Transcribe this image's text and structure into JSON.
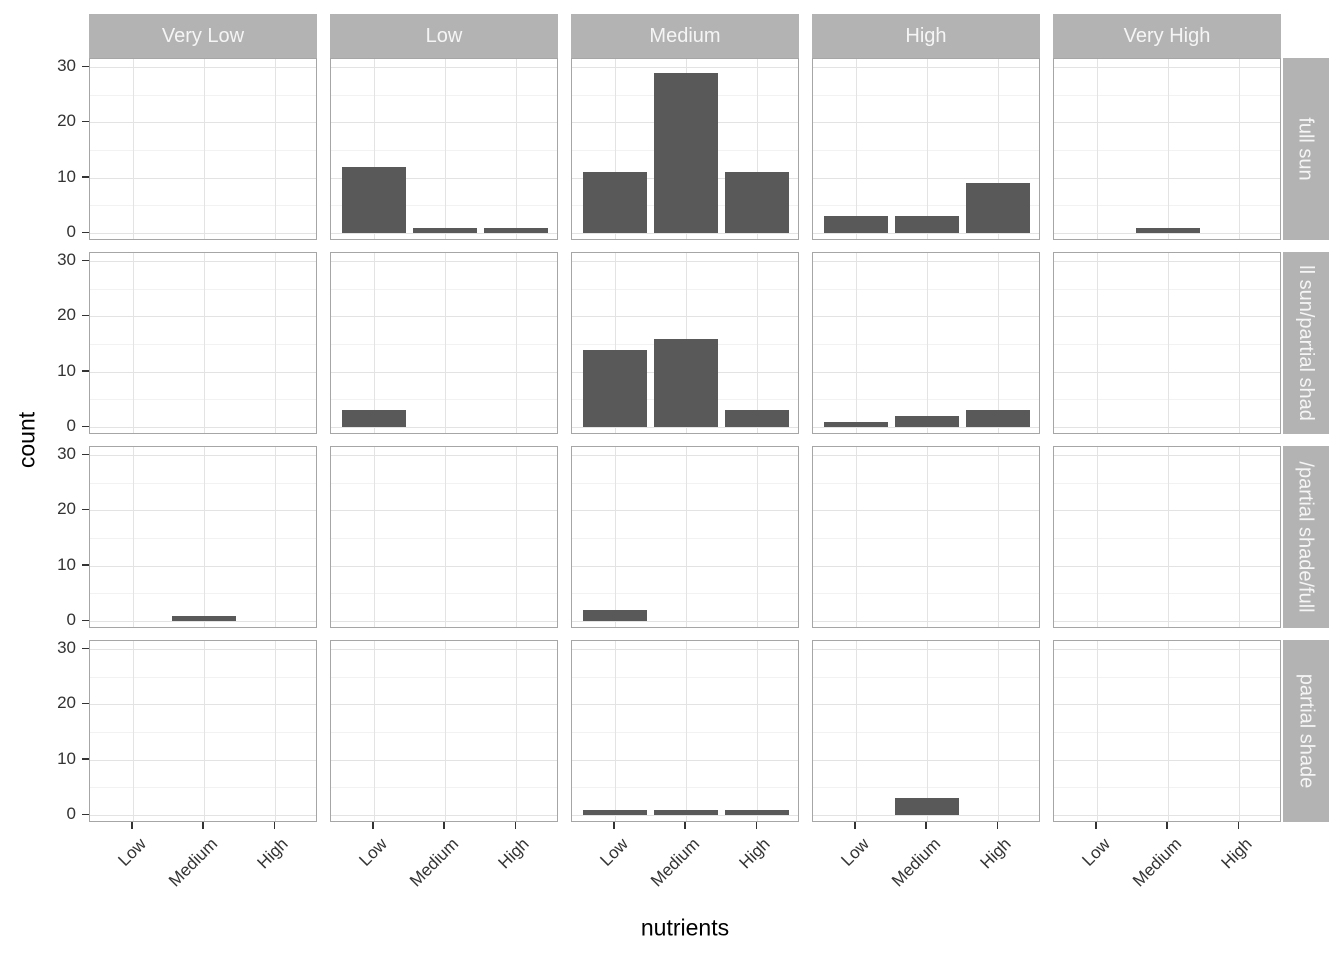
{
  "chart_data": {
    "type": "bar",
    "title": "",
    "xlabel": "nutrients",
    "ylabel": "count",
    "x_categories": [
      "Low",
      "Medium",
      "High"
    ],
    "facet_columns": [
      "Very Low",
      "Low",
      "Medium",
      "High",
      "Very High"
    ],
    "facet_rows": [
      "full sun",
      "ll sun/partial shad",
      "/partial shade/full",
      "partial shade"
    ],
    "y_ticks": [
      0,
      10,
      20,
      30
    ],
    "ylim": [
      0,
      30
    ],
    "grid": "major and minor, light grey on white panels",
    "legend": "none",
    "counts": [
      [
        [
          0,
          0,
          0
        ],
        [
          12,
          1,
          1
        ],
        [
          11,
          29,
          11
        ],
        [
          3,
          3,
          9
        ],
        [
          0,
          1,
          0
        ]
      ],
      [
        [
          0,
          0,
          0
        ],
        [
          3,
          0,
          0
        ],
        [
          14,
          16,
          3
        ],
        [
          1,
          2,
          3
        ],
        [
          0,
          0,
          0
        ]
      ],
      [
        [
          0,
          1,
          0
        ],
        [
          0,
          0,
          0
        ],
        [
          2,
          0,
          0
        ],
        [
          0,
          0,
          0
        ],
        [
          0,
          0,
          0
        ]
      ],
      [
        [
          0,
          0,
          0
        ],
        [
          0,
          0,
          0
        ],
        [
          1,
          1,
          1
        ],
        [
          0,
          3,
          0
        ],
        [
          0,
          0,
          0
        ]
      ]
    ]
  },
  "colors": {
    "bar": "#595959",
    "strip_bg": "#b3b3b3",
    "strip_text": "#f5f5f5",
    "panel_border": "#a6a6a6",
    "grid_major": "#e3e3e3",
    "grid_minor": "#f2f2f2",
    "axis_text": "#333333",
    "title_text": "#000000"
  }
}
